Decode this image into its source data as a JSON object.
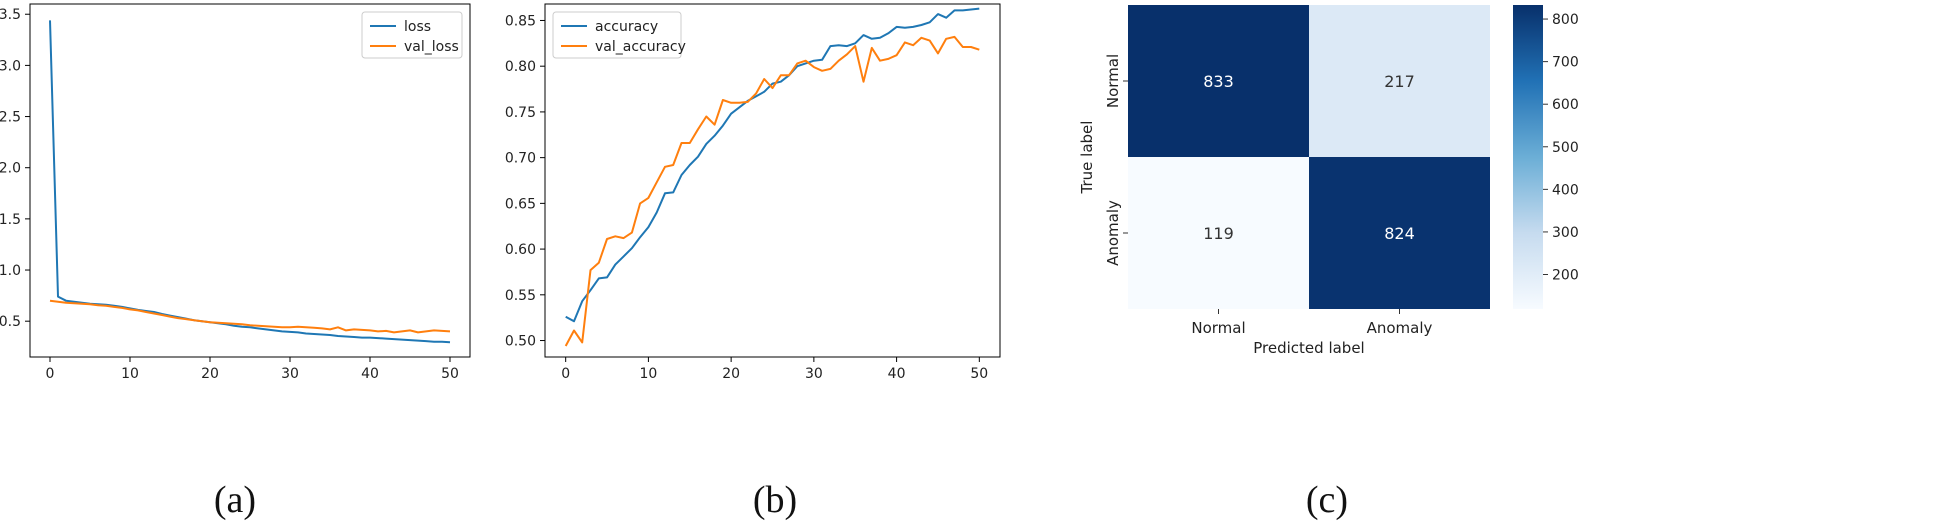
{
  "panels": {
    "a": "(a)",
    "b": "(b)",
    "c": "(c)"
  },
  "colors": {
    "train": "#1f77b4",
    "val": "#ff7f0e",
    "cmap_high": "#08306b",
    "cmap_low": "#f7fbff"
  },
  "chart_data": [
    {
      "type": "line",
      "x": [
        0,
        1,
        2,
        3,
        4,
        5,
        6,
        7,
        8,
        9,
        10,
        11,
        12,
        13,
        14,
        15,
        16,
        17,
        18,
        19,
        20,
        21,
        22,
        23,
        24,
        25,
        26,
        27,
        28,
        29,
        30,
        31,
        32,
        33,
        34,
        35,
        36,
        37,
        38,
        39,
        40,
        41,
        42,
        43,
        44,
        45,
        46,
        47,
        48,
        49,
        50
      ],
      "series": [
        {
          "name": "loss",
          "values": [
            3.44,
            0.74,
            0.7,
            0.69,
            0.68,
            0.67,
            0.665,
            0.66,
            0.65,
            0.64,
            0.625,
            0.61,
            0.6,
            0.59,
            0.57,
            0.555,
            0.54,
            0.525,
            0.51,
            0.5,
            0.49,
            0.48,
            0.47,
            0.455,
            0.445,
            0.44,
            0.43,
            0.42,
            0.41,
            0.4,
            0.395,
            0.39,
            0.38,
            0.375,
            0.37,
            0.365,
            0.355,
            0.35,
            0.345,
            0.34,
            0.34,
            0.335,
            0.33,
            0.325,
            0.32,
            0.315,
            0.31,
            0.305,
            0.3,
            0.3,
            0.295
          ]
        },
        {
          "name": "val_loss",
          "values": [
            0.7,
            0.69,
            0.68,
            0.675,
            0.67,
            0.665,
            0.655,
            0.65,
            0.64,
            0.63,
            0.615,
            0.605,
            0.59,
            0.575,
            0.56,
            0.545,
            0.53,
            0.52,
            0.51,
            0.5,
            0.49,
            0.485,
            0.48,
            0.475,
            0.47,
            0.46,
            0.455,
            0.45,
            0.445,
            0.44,
            0.44,
            0.445,
            0.44,
            0.435,
            0.43,
            0.42,
            0.44,
            0.41,
            0.42,
            0.415,
            0.41,
            0.4,
            0.405,
            0.39,
            0.4,
            0.41,
            0.39,
            0.4,
            0.41,
            0.405,
            0.4
          ]
        }
      ],
      "xlim": [
        -2.5,
        52.5
      ],
      "ylim": [
        0.15,
        3.6
      ],
      "xticks": [
        0,
        10,
        20,
        30,
        40,
        50
      ],
      "yticks": [
        0.5,
        1.0,
        1.5,
        2.0,
        2.5,
        3.0,
        3.5
      ],
      "ytick_labels": [
        "0.5",
        "1.0",
        "1.5",
        "2.0",
        "2.5",
        "3.0",
        "3.5"
      ],
      "legend": "top-right"
    },
    {
      "type": "line",
      "x": [
        0,
        1,
        2,
        3,
        4,
        5,
        6,
        7,
        8,
        9,
        10,
        11,
        12,
        13,
        14,
        15,
        16,
        17,
        18,
        19,
        20,
        21,
        22,
        23,
        24,
        25,
        26,
        27,
        28,
        29,
        30,
        31,
        32,
        33,
        34,
        35,
        36,
        37,
        38,
        39,
        40,
        41,
        42,
        43,
        44,
        45,
        46,
        47,
        48,
        49,
        50
      ],
      "series": [
        {
          "name": "accuracy",
          "values": [
            0.526,
            0.521,
            0.543,
            0.555,
            0.568,
            0.569,
            0.583,
            0.592,
            0.601,
            0.613,
            0.624,
            0.64,
            0.661,
            0.662,
            0.681,
            0.692,
            0.701,
            0.715,
            0.724,
            0.735,
            0.748,
            0.755,
            0.762,
            0.767,
            0.772,
            0.781,
            0.783,
            0.79,
            0.8,
            0.803,
            0.806,
            0.807,
            0.822,
            0.823,
            0.822,
            0.825,
            0.834,
            0.83,
            0.831,
            0.836,
            0.843,
            0.842,
            0.843,
            0.845,
            0.848,
            0.857,
            0.853,
            0.861,
            0.861,
            0.862,
            0.863
          ]
        },
        {
          "name": "val_accuracy",
          "values": [
            0.494,
            0.511,
            0.498,
            0.577,
            0.585,
            0.611,
            0.614,
            0.612,
            0.618,
            0.65,
            0.656,
            0.673,
            0.69,
            0.692,
            0.716,
            0.716,
            0.731,
            0.745,
            0.736,
            0.763,
            0.76,
            0.76,
            0.761,
            0.77,
            0.786,
            0.776,
            0.79,
            0.79,
            0.803,
            0.806,
            0.799,
            0.795,
            0.797,
            0.806,
            0.813,
            0.822,
            0.783,
            0.82,
            0.806,
            0.808,
            0.812,
            0.826,
            0.823,
            0.831,
            0.828,
            0.814,
            0.83,
            0.832,
            0.821,
            0.821,
            0.818
          ]
        }
      ],
      "xlim": [
        -2.5,
        52.5
      ],
      "ylim": [
        0.482,
        0.868
      ],
      "xticks": [
        0,
        10,
        20,
        30,
        40,
        50
      ],
      "yticks": [
        0.5,
        0.55,
        0.6,
        0.65,
        0.7,
        0.75,
        0.8,
        0.85
      ],
      "ytick_labels": [
        "0.50",
        "0.55",
        "0.60",
        "0.65",
        "0.70",
        "0.75",
        "0.80",
        "0.85"
      ],
      "legend": "top-left"
    },
    {
      "type": "heatmap",
      "rows": [
        "Normal",
        "Anomaly"
      ],
      "columns": [
        "Normal",
        "Anomaly"
      ],
      "values": [
        [
          833,
          217
        ],
        [
          119,
          824
        ]
      ],
      "xlabel": "Predicted label",
      "ylabel": "True label",
      "colorbar_ticks": [
        200,
        300,
        400,
        500,
        600,
        700,
        800
      ],
      "colorbar_range": [
        119,
        833
      ]
    }
  ]
}
